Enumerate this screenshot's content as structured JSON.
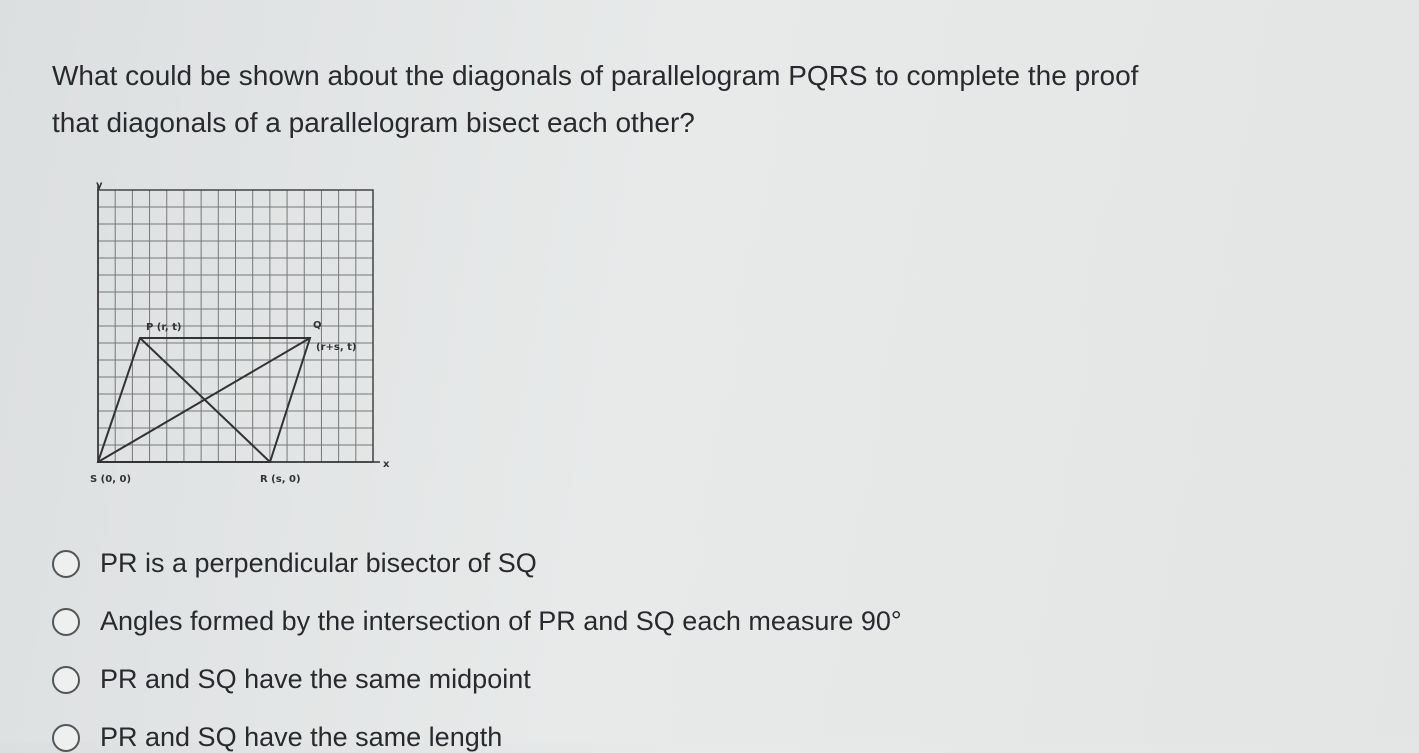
{
  "question": "What could be shown about the diagonals of parallelogram PQRS to complete the proof that diagonals of a parallelogram bisect each other?",
  "diagram": {
    "y_axis": "y",
    "x_axis": "x",
    "p_label": "P (r, t)",
    "q_label": "Q",
    "q_coords": "(r+s, t)",
    "s_label": "S (0, 0)",
    "r_label": "R (s, 0)"
  },
  "options": [
    "PR is a perpendicular bisector of SQ",
    "Angles formed by the intersection of PR and SQ each measure 90°",
    "PR and SQ have the same midpoint",
    "PR and SQ have the same length"
  ]
}
